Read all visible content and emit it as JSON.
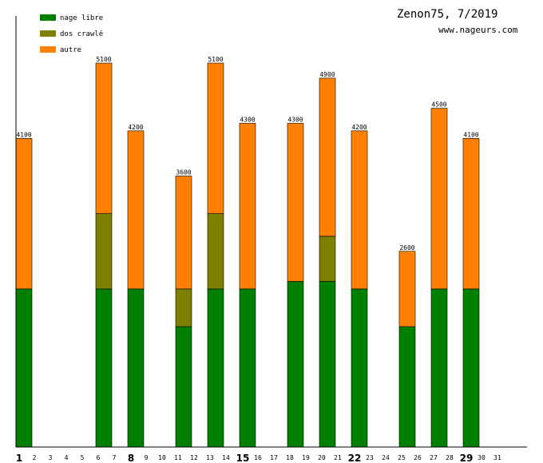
{
  "chart_data": {
    "type": "bar",
    "stacked": true,
    "title": "Zenon75, 7/2019",
    "subtitle": "www.nageurs.com",
    "ylim": [
      0,
      5100
    ],
    "legend": [
      {
        "name": "nage libre",
        "color": "#008000"
      },
      {
        "name": "dos crawlé",
        "color": "#808000"
      },
      {
        "name": "autre",
        "color": "#ff8000"
      }
    ],
    "legend_position": "top-left",
    "days": [
      1,
      2,
      3,
      4,
      5,
      6,
      7,
      8,
      9,
      10,
      11,
      12,
      13,
      14,
      15,
      16,
      17,
      18,
      19,
      20,
      21,
      22,
      23,
      24,
      25,
      26,
      27,
      28,
      29,
      30,
      31
    ],
    "major_days": [
      1,
      8,
      15,
      22,
      29
    ],
    "series": [
      {
        "name": "nage libre",
        "color": "#008000",
        "values": [
          2100,
          0,
          0,
          0,
          0,
          2100,
          0,
          2100,
          0,
          0,
          1600,
          0,
          2100,
          0,
          2100,
          0,
          0,
          2200,
          0,
          2200,
          0,
          2100,
          0,
          0,
          1600,
          0,
          2100,
          0,
          2100,
          0,
          0
        ]
      },
      {
        "name": "dos crawlé",
        "color": "#808000",
        "values": [
          0,
          0,
          0,
          0,
          0,
          1000,
          0,
          0,
          0,
          0,
          500,
          0,
          1000,
          0,
          0,
          0,
          0,
          0,
          0,
          600,
          0,
          0,
          0,
          0,
          0,
          0,
          0,
          0,
          0,
          0,
          0
        ]
      },
      {
        "name": "autre",
        "color": "#ff8000",
        "values": [
          2000,
          0,
          0,
          0,
          0,
          2000,
          0,
          2100,
          0,
          0,
          1500,
          0,
          2000,
          0,
          2200,
          0,
          0,
          2100,
          0,
          2100,
          0,
          2100,
          0,
          0,
          1000,
          0,
          2400,
          0,
          2000,
          0,
          0
        ]
      }
    ],
    "totals": [
      4100,
      0,
      0,
      0,
      0,
      5100,
      0,
      4200,
      0,
      0,
      3600,
      0,
      5100,
      0,
      4300,
      0,
      0,
      4300,
      0,
      4900,
      0,
      4200,
      0,
      0,
      2600,
      0,
      4500,
      0,
      4100,
      0,
      0
    ],
    "total_labels": [
      "4100",
      "",
      "",
      "",
      "",
      "5100",
      "",
      "4200",
      "",
      "",
      "3600",
      "",
      "5100",
      "",
      "4300",
      "",
      "",
      "4300",
      "",
      "4900",
      "",
      "4200",
      "",
      "",
      "2600",
      "",
      "4500",
      "",
      "4100",
      "",
      ""
    ]
  }
}
